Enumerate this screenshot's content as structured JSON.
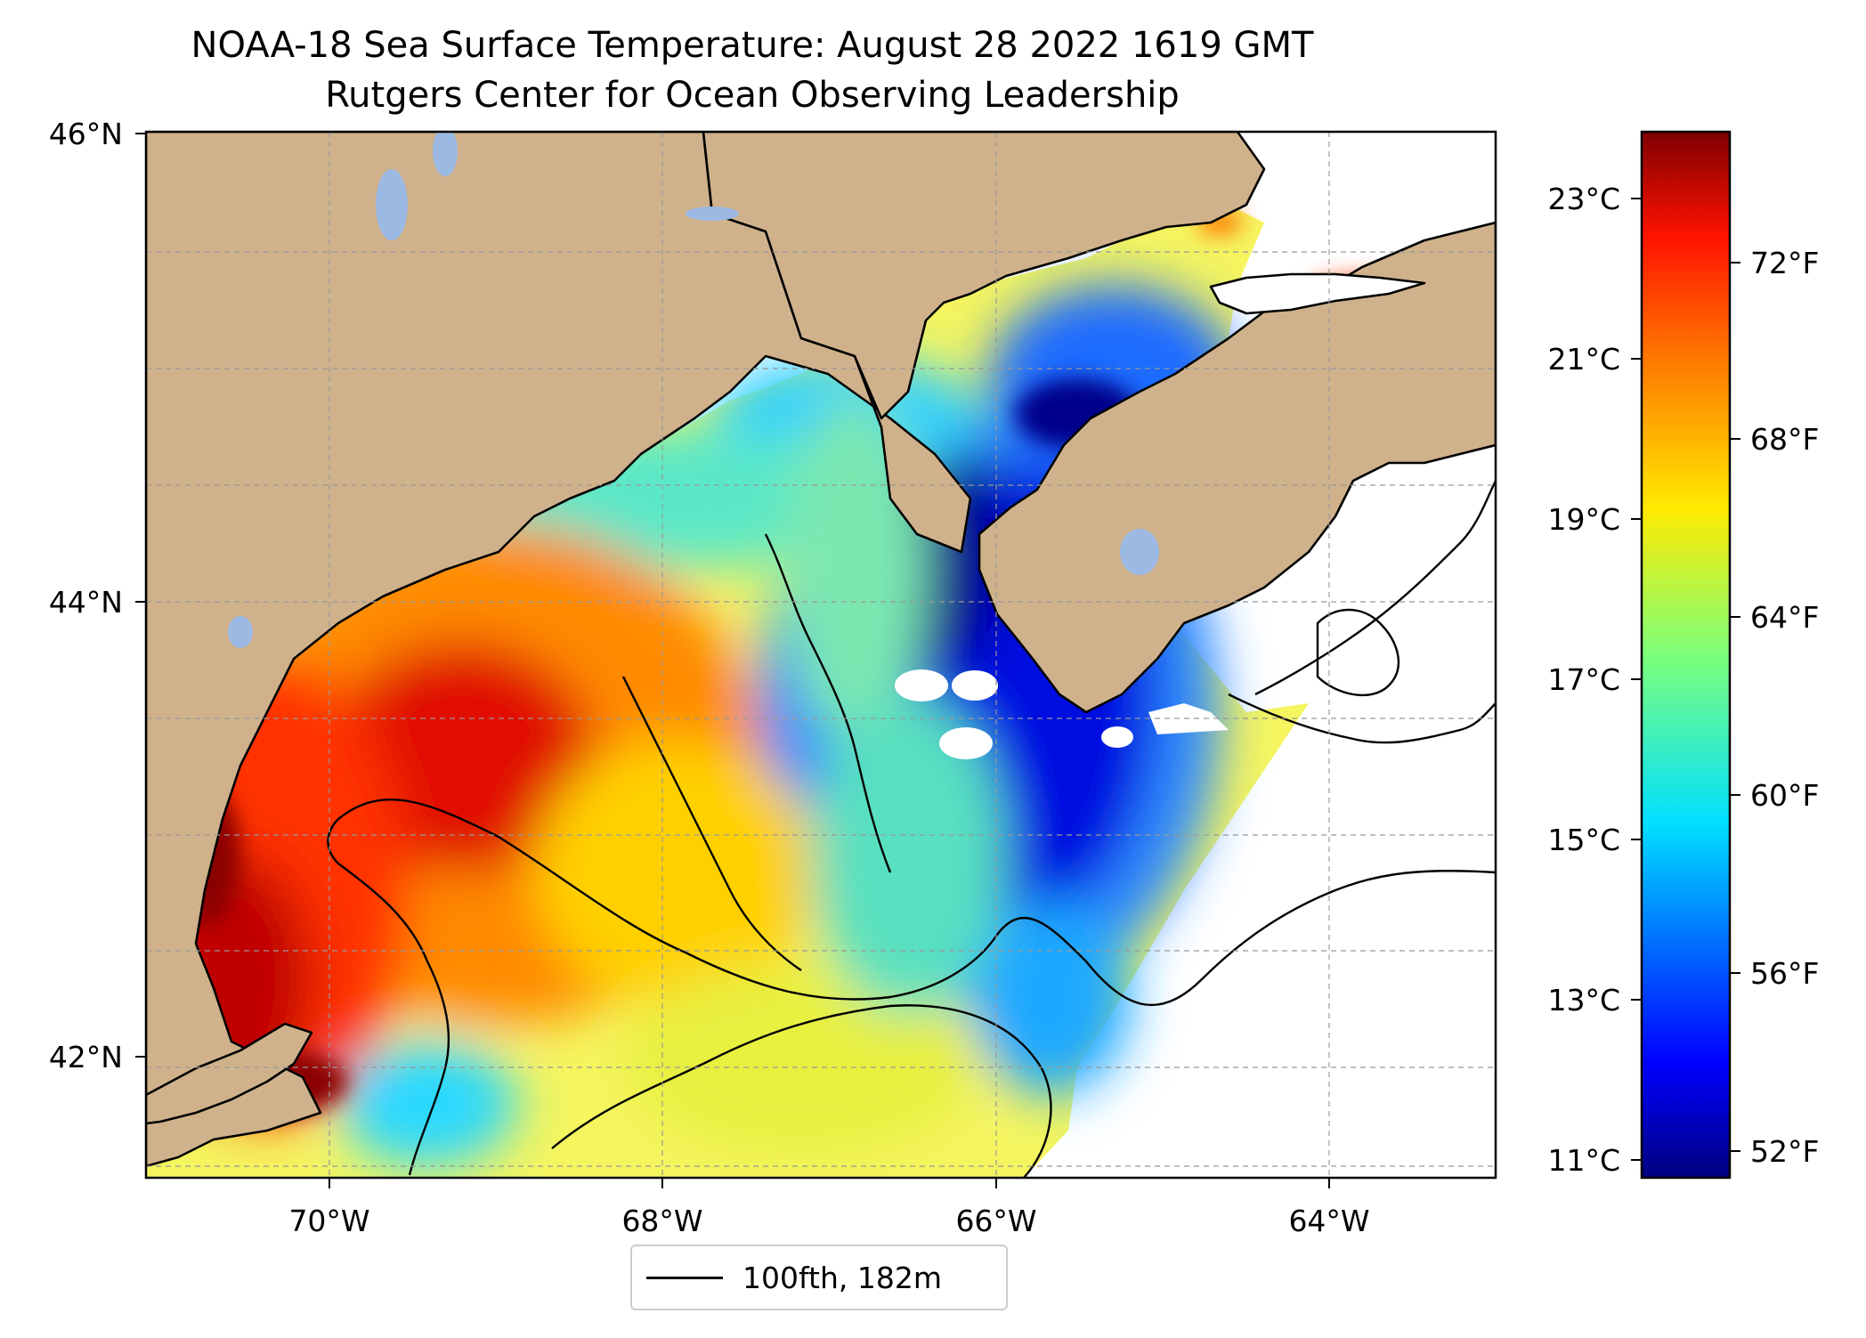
{
  "title": {
    "line1": "NOAA-18 Sea Surface Temperature: August 28 2022 1619 GMT",
    "line2": "Rutgers Center for Ocean Observing Leadership"
  },
  "map": {
    "lon_range": [
      -71.1,
      -63.0
    ],
    "lat_range": [
      41.5,
      46.0
    ],
    "x_ticks": [
      "70°W",
      "68°W",
      "66°W",
      "64°W"
    ],
    "y_ticks": [
      "46°N",
      "44°N",
      "42°N"
    ],
    "land_color": "#cfb28b",
    "lake_color": "#9cb9e3",
    "grid": true
  },
  "colorbar": {
    "colormap": "jet",
    "celsius_ticks": [
      "23°C",
      "21°C",
      "19°C",
      "17°C",
      "15°C",
      "13°C",
      "11°C"
    ],
    "fahrenheit_ticks": [
      "72°F",
      "68°F",
      "64°F",
      "60°F",
      "56°F",
      "52°F"
    ]
  },
  "legend": {
    "label": "100fth, 182m"
  }
}
